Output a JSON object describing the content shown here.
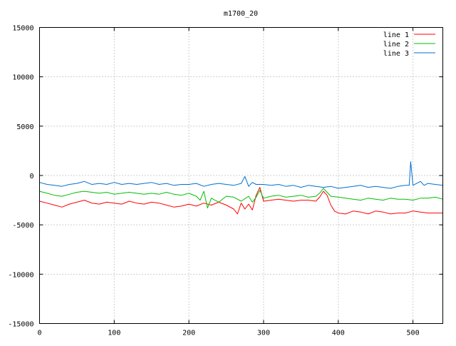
{
  "chart_data": {
    "type": "line",
    "title": "m1700_20",
    "xlabel": "",
    "ylabel": "",
    "xlim": [
      0,
      540
    ],
    "ylim": [
      -15000,
      15000
    ],
    "x_ticks": [
      0,
      100,
      200,
      300,
      400,
      500
    ],
    "y_ticks": [
      -15000,
      -10000,
      -5000,
      0,
      5000,
      10000,
      15000
    ],
    "grid": true,
    "legend_position": "top-right",
    "series": [
      {
        "name": "line 1",
        "color": "#ff0000",
        "x": [
          0,
          10,
          20,
          30,
          40,
          50,
          60,
          70,
          80,
          90,
          100,
          110,
          120,
          130,
          140,
          150,
          160,
          170,
          180,
          190,
          200,
          210,
          220,
          230,
          240,
          250,
          260,
          265,
          270,
          275,
          280,
          285,
          290,
          295,
          300,
          310,
          320,
          330,
          340,
          350,
          360,
          370,
          375,
          380,
          385,
          390,
          395,
          400,
          410,
          420,
          430,
          440,
          450,
          460,
          470,
          480,
          490,
          500,
          510,
          520,
          530,
          540
        ],
        "y": [
          -2600,
          -2800,
          -3000,
          -3200,
          -2900,
          -2700,
          -2500,
          -2800,
          -2900,
          -2700,
          -2800,
          -2900,
          -2600,
          -2800,
          -2900,
          -2700,
          -2800,
          -3000,
          -3200,
          -3100,
          -2900,
          -3100,
          -2800,
          -3000,
          -2700,
          -3000,
          -3400,
          -3900,
          -2800,
          -3400,
          -2900,
          -3500,
          -2000,
          -1200,
          -2600,
          -2500,
          -2400,
          -2500,
          -2600,
          -2500,
          -2500,
          -2600,
          -2200,
          -1600,
          -2000,
          -3000,
          -3600,
          -3800,
          -3900,
          -3600,
          -3700,
          -3900,
          -3600,
          -3700,
          -3900,
          -3800,
          -3800,
          -3600,
          -3700,
          -3800,
          -3800,
          -3800
        ]
      },
      {
        "name": "line 2",
        "color": "#00c000",
        "x": [
          0,
          10,
          20,
          30,
          40,
          50,
          60,
          70,
          80,
          90,
          100,
          110,
          120,
          130,
          140,
          150,
          160,
          170,
          180,
          190,
          200,
          210,
          215,
          220,
          225,
          230,
          240,
          250,
          260,
          270,
          280,
          285,
          290,
          295,
          300,
          310,
          320,
          330,
          340,
          350,
          360,
          370,
          375,
          380,
          385,
          390,
          400,
          410,
          420,
          430,
          440,
          450,
          460,
          470,
          480,
          490,
          500,
          510,
          520,
          530,
          540
        ],
        "y": [
          -1600,
          -1800,
          -2000,
          -2100,
          -1900,
          -1700,
          -1600,
          -1700,
          -1800,
          -1700,
          -1900,
          -1800,
          -1700,
          -1800,
          -1900,
          -1800,
          -1900,
          -1700,
          -1900,
          -2000,
          -1800,
          -2100,
          -2500,
          -1600,
          -3300,
          -2300,
          -2700,
          -2100,
          -2200,
          -2600,
          -2100,
          -2700,
          -2200,
          -1500,
          -2300,
          -2100,
          -2000,
          -2200,
          -2100,
          -2000,
          -2200,
          -2100,
          -1800,
          -1300,
          -1700,
          -2100,
          -2200,
          -2300,
          -2400,
          -2500,
          -2300,
          -2400,
          -2500,
          -2300,
          -2400,
          -2400,
          -2500,
          -2300,
          -2300,
          -2200,
          -2400
        ]
      },
      {
        "name": "line 3",
        "color": "#0070d0",
        "x": [
          0,
          10,
          20,
          30,
          40,
          50,
          60,
          70,
          80,
          90,
          100,
          110,
          120,
          130,
          140,
          150,
          160,
          170,
          180,
          190,
          200,
          210,
          220,
          230,
          240,
          250,
          260,
          270,
          275,
          280,
          285,
          290,
          300,
          310,
          320,
          330,
          340,
          350,
          360,
          370,
          380,
          390,
          400,
          410,
          420,
          430,
          440,
          450,
          460,
          470,
          480,
          490,
          495,
          497,
          500,
          505,
          510,
          515,
          520,
          530,
          540
        ],
        "y": [
          -700,
          -900,
          -1000,
          -1100,
          -900,
          -800,
          -600,
          -900,
          -800,
          -900,
          -700,
          -900,
          -800,
          -900,
          -800,
          -700,
          -900,
          -800,
          -1000,
          -900,
          -900,
          -800,
          -1100,
          -900,
          -800,
          -900,
          -1000,
          -800,
          -100,
          -1100,
          -700,
          -900,
          -900,
          -1000,
          -900,
          -1100,
          -1000,
          -1200,
          -1000,
          -1100,
          -1200,
          -1100,
          -1300,
          -1200,
          -1100,
          -1000,
          -1200,
          -1100,
          -1200,
          -1300,
          -1100,
          -1000,
          -1000,
          1400,
          -1000,
          -800,
          -600,
          -1000,
          -800,
          -900,
          -1000
        ]
      }
    ]
  }
}
